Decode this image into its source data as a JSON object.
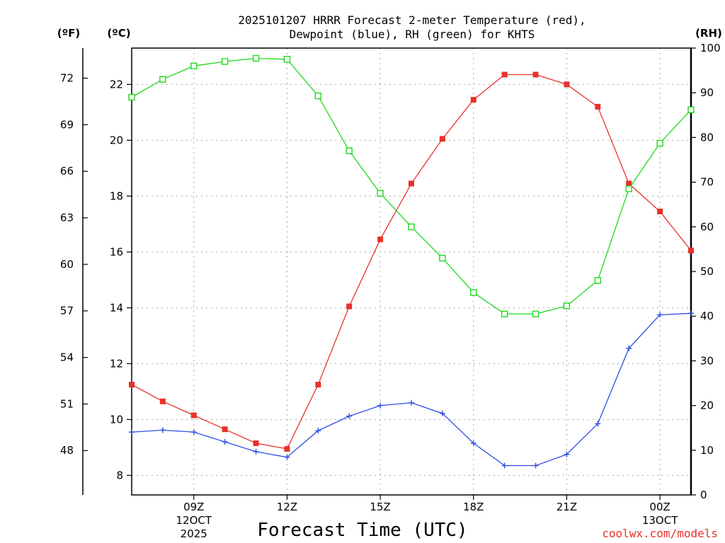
{
  "chart_data": {
    "type": "line",
    "title_lines": [
      "2025101207 HRRR Forecast 2-meter Temperature (red),",
      "Dewpoint (blue), RH (green) for KHTS"
    ],
    "xlabel": "Forecast Time (UTC)",
    "credit": "coolwx.com/models",
    "units": {
      "left_f": "(ºF)",
      "left_c": "(ºC)",
      "right_rh": "(RH)"
    },
    "x": [
      7,
      8,
      9,
      10,
      11,
      12,
      13,
      14,
      15,
      16,
      17,
      18,
      19,
      20,
      21,
      22,
      23,
      24,
      25
    ],
    "xlim": [
      7,
      25
    ],
    "x_ticks": [
      {
        "x": 9,
        "lines": [
          "09Z",
          "12OCT",
          "2025"
        ]
      },
      {
        "x": 12,
        "lines": [
          "12Z"
        ]
      },
      {
        "x": 15,
        "lines": [
          "15Z"
        ]
      },
      {
        "x": 18,
        "lines": [
          "18Z"
        ]
      },
      {
        "x": 21,
        "lines": [
          "21Z"
        ]
      },
      {
        "x": 24,
        "lines": [
          "00Z",
          "13OCT"
        ]
      }
    ],
    "y_celsius": {
      "ylim": [
        7.3,
        23.3
      ],
      "ticks": [
        "8",
        "10",
        "12",
        "14",
        "16",
        "18",
        "20",
        "22"
      ]
    },
    "y_fahrenheit": {
      "ticks": [
        "48",
        "51",
        "54",
        "57",
        "60",
        "63",
        "66",
        "69",
        "72"
      ]
    },
    "y_rh": {
      "ylim": [
        0,
        100
      ],
      "ticks": [
        "0",
        "10",
        "20",
        "30",
        "40",
        "50",
        "60",
        "70",
        "80",
        "90",
        "100"
      ]
    },
    "series": [
      {
        "name": "Temperature (red)",
        "axis": "celsius",
        "color": "#e8312a",
        "marker": "filled-square",
        "values": [
          11.25,
          10.65,
          10.15,
          9.65,
          9.15,
          8.95,
          11.25,
          14.05,
          16.45,
          18.45,
          20.05,
          21.45,
          22.35,
          22.35,
          22.0,
          21.2,
          18.45,
          17.45,
          16.05
        ]
      },
      {
        "name": "Dewpoint (blue)",
        "axis": "celsius",
        "color": "#2e4fe6",
        "marker": "plus",
        "values": [
          9.55,
          9.62,
          9.55,
          9.2,
          8.85,
          8.65,
          9.6,
          10.12,
          10.5,
          10.6,
          10.22,
          9.15,
          8.35,
          8.35,
          8.75,
          9.85,
          12.55,
          13.75,
          13.8
        ]
      },
      {
        "name": "RH (green)",
        "axis": "rh",
        "color": "#1ed91e",
        "marker": "open-square",
        "values": [
          89,
          93,
          96,
          97,
          97.7,
          97.5,
          89.3,
          77,
          67.5,
          60,
          53,
          45.3,
          40.5,
          40.5,
          42.3,
          48,
          68.5,
          78.7,
          86.2
        ]
      }
    ]
  }
}
